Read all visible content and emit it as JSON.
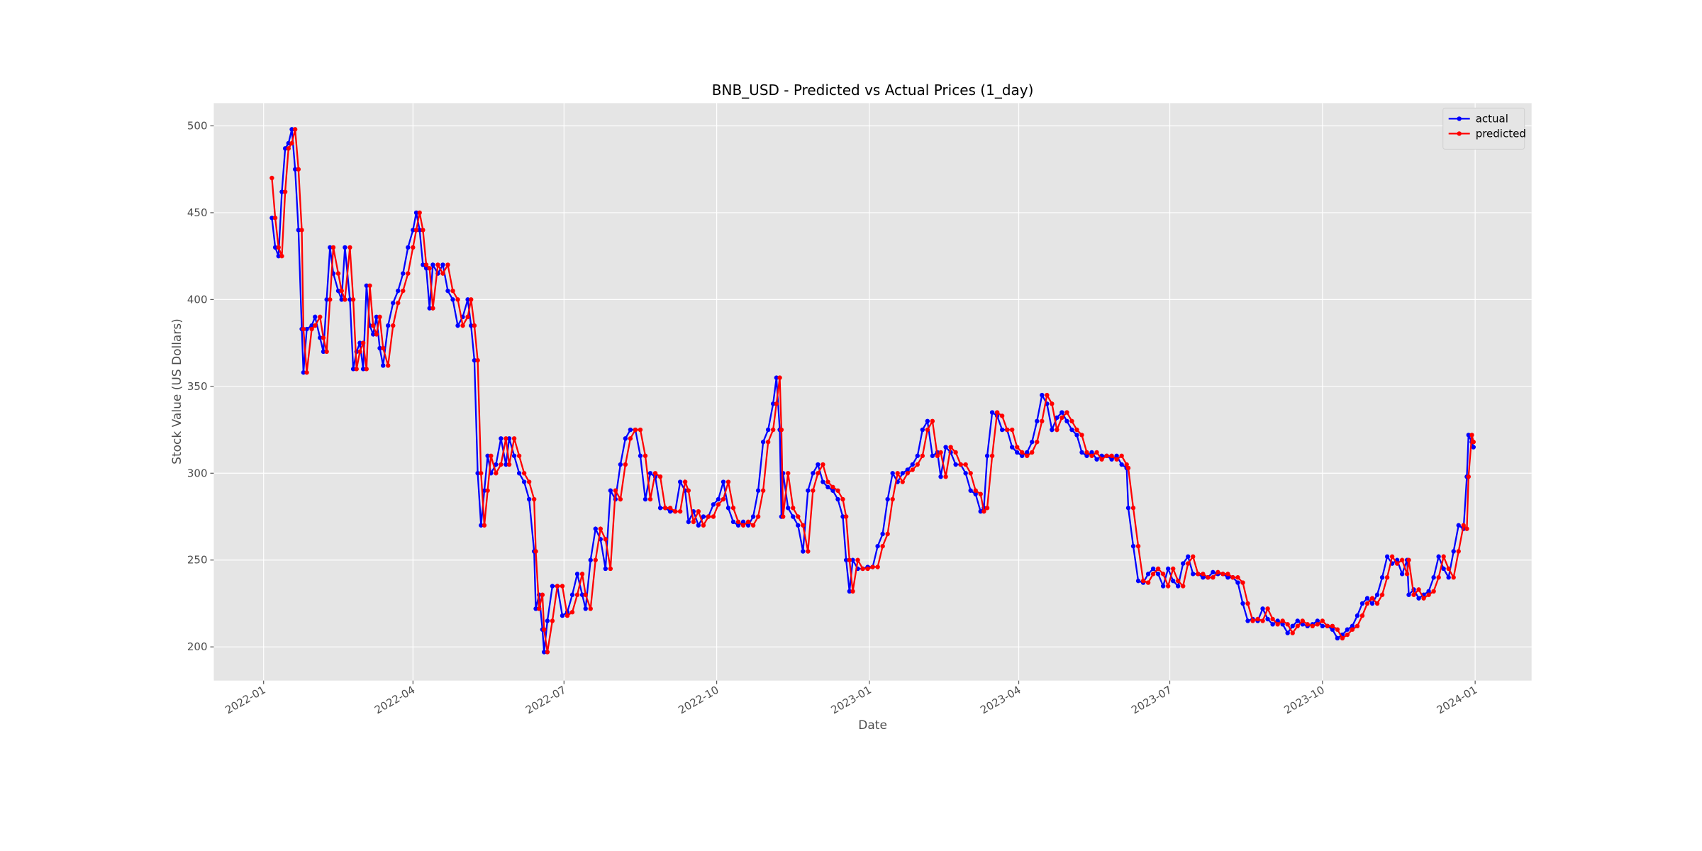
{
  "chart_data": {
    "type": "line",
    "title": "BNB_USD - Predicted vs Actual Prices (1_day)",
    "xlabel": "Date",
    "ylabel": "Stock Value (US Dollars)",
    "legend": "upper right",
    "grid": true,
    "xlim": [
      "2021-12-02",
      "2024-02-04"
    ],
    "xticks": [
      {
        "value": "2022-01-01",
        "label": "2022-01"
      },
      {
        "value": "2022-04-01",
        "label": "2022-04"
      },
      {
        "value": "2022-07-01",
        "label": "2022-07"
      },
      {
        "value": "2022-10-01",
        "label": "2022-10"
      },
      {
        "value": "2023-01-01",
        "label": "2023-01"
      },
      {
        "value": "2023-04-01",
        "label": "2023-04"
      },
      {
        "value": "2023-07-01",
        "label": "2023-07"
      },
      {
        "value": "2023-10-01",
        "label": "2023-10"
      },
      {
        "value": "2024-01-01",
        "label": "2024-01"
      }
    ],
    "ylim": [
      180.6,
      513.1
    ],
    "yticks": [
      200,
      250,
      300,
      350,
      400,
      450,
      500
    ],
    "x": [
      "2022-01-06",
      "2022-01-08",
      "2022-01-10",
      "2022-01-12",
      "2022-01-14",
      "2022-01-16",
      "2022-01-18",
      "2022-01-20",
      "2022-01-22",
      "2022-01-24",
      "2022-01-25",
      "2022-01-27",
      "2022-01-30",
      "2022-02-01",
      "2022-02-04",
      "2022-02-06",
      "2022-02-08",
      "2022-02-10",
      "2022-02-12",
      "2022-02-15",
      "2022-02-17",
      "2022-02-19",
      "2022-02-22",
      "2022-02-24",
      "2022-02-26",
      "2022-02-28",
      "2022-03-02",
      "2022-03-04",
      "2022-03-06",
      "2022-03-08",
      "2022-03-10",
      "2022-03-12",
      "2022-03-14",
      "2022-03-17",
      "2022-03-20",
      "2022-03-23",
      "2022-03-26",
      "2022-03-29",
      "2022-04-01",
      "2022-04-03",
      "2022-04-05",
      "2022-04-07",
      "2022-04-09",
      "2022-04-11",
      "2022-04-13",
      "2022-04-16",
      "2022-04-19",
      "2022-04-22",
      "2022-04-25",
      "2022-04-28",
      "2022-05-01",
      "2022-05-04",
      "2022-05-06",
      "2022-05-08",
      "2022-05-10",
      "2022-05-12",
      "2022-05-14",
      "2022-05-16",
      "2022-05-18",
      "2022-05-21",
      "2022-05-24",
      "2022-05-27",
      "2022-05-29",
      "2022-06-01",
      "2022-06-04",
      "2022-06-07",
      "2022-06-10",
      "2022-06-13",
      "2022-06-14",
      "2022-06-16",
      "2022-06-18",
      "2022-06-19",
      "2022-06-21",
      "2022-06-24",
      "2022-06-27",
      "2022-06-30",
      "2022-07-03",
      "2022-07-06",
      "2022-07-09",
      "2022-07-12",
      "2022-07-14",
      "2022-07-17",
      "2022-07-20",
      "2022-07-23",
      "2022-07-26",
      "2022-07-29",
      "2022-08-01",
      "2022-08-04",
      "2022-08-07",
      "2022-08-10",
      "2022-08-13",
      "2022-08-16",
      "2022-08-19",
      "2022-08-22",
      "2022-08-25",
      "2022-08-28",
      "2022-08-31",
      "2022-09-03",
      "2022-09-06",
      "2022-09-09",
      "2022-09-12",
      "2022-09-14",
      "2022-09-17",
      "2022-09-20",
      "2022-09-23",
      "2022-09-26",
      "2022-09-29",
      "2022-10-02",
      "2022-10-05",
      "2022-10-08",
      "2022-10-11",
      "2022-10-14",
      "2022-10-17",
      "2022-10-20",
      "2022-10-23",
      "2022-10-26",
      "2022-10-29",
      "2022-11-01",
      "2022-11-04",
      "2022-11-06",
      "2022-11-08",
      "2022-11-09",
      "2022-11-10",
      "2022-11-13",
      "2022-11-16",
      "2022-11-19",
      "2022-11-22",
      "2022-11-25",
      "2022-11-28",
      "2022-12-01",
      "2022-12-04",
      "2022-12-07",
      "2022-12-10",
      "2022-12-13",
      "2022-12-16",
      "2022-12-18",
      "2022-12-20",
      "2022-12-22",
      "2022-12-25",
      "2022-12-28",
      "2022-12-31",
      "2023-01-03",
      "2023-01-06",
      "2023-01-09",
      "2023-01-12",
      "2023-01-15",
      "2023-01-18",
      "2023-01-21",
      "2023-01-24",
      "2023-01-27",
      "2023-01-30",
      "2023-02-02",
      "2023-02-05",
      "2023-02-08",
      "2023-02-11",
      "2023-02-13",
      "2023-02-16",
      "2023-02-19",
      "2023-02-22",
      "2023-02-25",
      "2023-02-28",
      "2023-03-03",
      "2023-03-06",
      "2023-03-09",
      "2023-03-11",
      "2023-03-13",
      "2023-03-16",
      "2023-03-19",
      "2023-03-22",
      "2023-03-25",
      "2023-03-28",
      "2023-03-31",
      "2023-04-03",
      "2023-04-06",
      "2023-04-09",
      "2023-04-12",
      "2023-04-15",
      "2023-04-18",
      "2023-04-21",
      "2023-04-24",
      "2023-04-27",
      "2023-04-30",
      "2023-05-03",
      "2023-05-06",
      "2023-05-09",
      "2023-05-12",
      "2023-05-15",
      "2023-05-18",
      "2023-05-21",
      "2023-05-24",
      "2023-05-27",
      "2023-05-30",
      "2023-06-02",
      "2023-06-05",
      "2023-06-06",
      "2023-06-09",
      "2023-06-12",
      "2023-06-15",
      "2023-06-18",
      "2023-06-21",
      "2023-06-24",
      "2023-06-27",
      "2023-06-30",
      "2023-07-03",
      "2023-07-06",
      "2023-07-09",
      "2023-07-12",
      "2023-07-15",
      "2023-07-18",
      "2023-07-21",
      "2023-07-24",
      "2023-07-27",
      "2023-07-30",
      "2023-08-02",
      "2023-08-05",
      "2023-08-08",
      "2023-08-11",
      "2023-08-14",
      "2023-08-17",
      "2023-08-20",
      "2023-08-23",
      "2023-08-26",
      "2023-08-29",
      "2023-09-01",
      "2023-09-04",
      "2023-09-07",
      "2023-09-10",
      "2023-09-13",
      "2023-09-16",
      "2023-09-19",
      "2023-09-22",
      "2023-09-25",
      "2023-09-28",
      "2023-10-01",
      "2023-10-04",
      "2023-10-07",
      "2023-10-10",
      "2023-10-13",
      "2023-10-16",
      "2023-10-19",
      "2023-10-22",
      "2023-10-25",
      "2023-10-28",
      "2023-10-31",
      "2023-11-03",
      "2023-11-06",
      "2023-11-09",
      "2023-11-12",
      "2023-11-15",
      "2023-11-18",
      "2023-11-21",
      "2023-11-22",
      "2023-11-25",
      "2023-11-28",
      "2023-12-01",
      "2023-12-04",
      "2023-12-07",
      "2023-12-10",
      "2023-12-13",
      "2023-12-16",
      "2023-12-19",
      "2023-12-22",
      "2023-12-25",
      "2023-12-27",
      "2023-12-28",
      "2023-12-30",
      "2023-12-31"
    ],
    "series": [
      {
        "name": "actual",
        "color": "#0000ff",
        "values": [
          447,
          430,
          425,
          462,
          487,
          490,
          498,
          475,
          440,
          383,
          358,
          383,
          385,
          390,
          378,
          370,
          400,
          430,
          415,
          405,
          400,
          430,
          400,
          360,
          370,
          375,
          360,
          408,
          385,
          380,
          390,
          372,
          362,
          385,
          398,
          405,
          415,
          430,
          440,
          450,
          440,
          420,
          418,
          395,
          420,
          415,
          420,
          405,
          400,
          385,
          390,
          400,
          385,
          365,
          300,
          270,
          290,
          310,
          300,
          305,
          320,
          305,
          320,
          310,
          300,
          295,
          285,
          255,
          222,
          230,
          210,
          197,
          215,
          235,
          235,
          218,
          220,
          230,
          242,
          230,
          222,
          250,
          268,
          262,
          245,
          290,
          285,
          305,
          320,
          325,
          325,
          310,
          285,
          300,
          298,
          280,
          280,
          278,
          278,
          295,
          290,
          272,
          278,
          270,
          275,
          275,
          282,
          285,
          295,
          280,
          272,
          270,
          272,
          270,
          275,
          290,
          318,
          325,
          340,
          355,
          325,
          275,
          300,
          280,
          275,
          270,
          255,
          290,
          300,
          305,
          295,
          292,
          290,
          285,
          275,
          250,
          232,
          250,
          245,
          245,
          246,
          246,
          258,
          265,
          285,
          300,
          295,
          300,
          302,
          305,
          310,
          325,
          330,
          310,
          312,
          298,
          315,
          312,
          305,
          305,
          300,
          290,
          288,
          278,
          280,
          310,
          335,
          333,
          325,
          325,
          315,
          312,
          310,
          312,
          318,
          330,
          345,
          340,
          325,
          332,
          335,
          330,
          325,
          322,
          312,
          310,
          312,
          308,
          310,
          310,
          308,
          310,
          305,
          303,
          280,
          258,
          238,
          237,
          242,
          245,
          242,
          235,
          245,
          238,
          235,
          248,
          252,
          242,
          242,
          240,
          240,
          243,
          242,
          242,
          240,
          240,
          237,
          225,
          215,
          216,
          215,
          222,
          216,
          213,
          215,
          213,
          208,
          212,
          215,
          213,
          212,
          213,
          215,
          212,
          212,
          210,
          205,
          207,
          210,
          212,
          218,
          225,
          228,
          225,
          230,
          240,
          252,
          248,
          250,
          242,
          250,
          230,
          233,
          228,
          230,
          232,
          240,
          252,
          245,
          240,
          255,
          270,
          268,
          298,
          322,
          318,
          315
        ]
      },
      {
        "name": "predicted",
        "color": "#ff0000",
        "values": [
          470,
          447,
          430,
          425,
          462,
          487,
          490,
          498,
          475,
          440,
          383,
          358,
          383,
          385,
          390,
          378,
          370,
          400,
          430,
          415,
          405,
          400,
          430,
          400,
          360,
          370,
          375,
          360,
          408,
          385,
          380,
          390,
          372,
          362,
          385,
          398,
          405,
          415,
          430,
          440,
          450,
          440,
          420,
          418,
          395,
          420,
          415,
          420,
          405,
          400,
          385,
          390,
          400,
          385,
          365,
          300,
          270,
          290,
          310,
          300,
          305,
          320,
          305,
          320,
          310,
          300,
          295,
          285,
          255,
          222,
          230,
          210,
          197,
          215,
          235,
          235,
          218,
          220,
          230,
          242,
          230,
          222,
          250,
          268,
          262,
          245,
          290,
          285,
          305,
          320,
          325,
          325,
          310,
          285,
          300,
          298,
          280,
          280,
          278,
          278,
          295,
          290,
          272,
          278,
          270,
          275,
          275,
          282,
          285,
          295,
          280,
          272,
          270,
          272,
          270,
          275,
          290,
          318,
          325,
          340,
          355,
          325,
          275,
          300,
          280,
          275,
          270,
          255,
          290,
          300,
          305,
          295,
          292,
          290,
          285,
          275,
          250,
          232,
          250,
          245,
          245,
          246,
          246,
          258,
          265,
          285,
          300,
          295,
          300,
          302,
          305,
          310,
          325,
          330,
          310,
          312,
          298,
          315,
          312,
          305,
          305,
          300,
          290,
          288,
          278,
          280,
          310,
          335,
          333,
          325,
          325,
          315,
          312,
          310,
          312,
          318,
          330,
          345,
          340,
          325,
          332,
          335,
          330,
          325,
          322,
          312,
          310,
          312,
          308,
          310,
          310,
          308,
          310,
          305,
          303,
          280,
          258,
          238,
          237,
          242,
          245,
          242,
          235,
          245,
          238,
          235,
          248,
          252,
          242,
          242,
          240,
          240,
          243,
          242,
          242,
          240,
          240,
          237,
          225,
          215,
          216,
          215,
          222,
          216,
          213,
          215,
          213,
          208,
          212,
          215,
          213,
          212,
          213,
          215,
          212,
          212,
          210,
          205,
          207,
          210,
          212,
          218,
          225,
          228,
          225,
          230,
          240,
          252,
          248,
          250,
          242,
          250,
          230,
          233,
          228,
          230,
          232,
          240,
          252,
          245,
          240,
          255,
          270,
          268,
          298,
          322,
          318
        ]
      }
    ]
  }
}
